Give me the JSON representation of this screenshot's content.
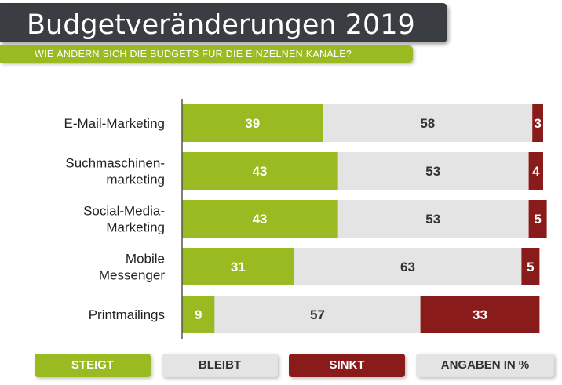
{
  "header": {
    "title": "Budgetveränderungen 2019",
    "subtitle": "WIE ÄNDERN SICH DIE BUDGETS FÜR DIE EINZELNEN KANÄLE?"
  },
  "legend": {
    "steigt": "STEIGT",
    "bleibt": "BLEIBT",
    "sinkt": "SINKT",
    "unit": "ANGABEN IN %"
  },
  "colors": {
    "steigt": "#9aba22",
    "bleibt": "#e4e4e4",
    "sinkt": "#8a1b1b",
    "title_bg": "#3a3d42"
  },
  "chart_data": {
    "type": "bar",
    "orientation": "horizontal",
    "stacked": true,
    "title": "Budgetveränderungen 2019",
    "subtitle": "WIE ÄNDERN SICH DIE BUDGETS FÜR DIE EINZELNEN KANÄLE?",
    "unit": "%",
    "xlim": [
      0,
      100
    ],
    "grid": false,
    "legend_position": "bottom",
    "categories": [
      [
        "E-Mail-Marketing"
      ],
      [
        "Suchmaschinen-",
        "marketing"
      ],
      [
        "Social-Media-",
        "Marketing"
      ],
      [
        "Mobile",
        "Messenger"
      ],
      [
        "Printmailings"
      ]
    ],
    "series": [
      {
        "name": "STEIGT",
        "values": [
          39,
          43,
          43,
          31,
          9
        ]
      },
      {
        "name": "BLEIBT",
        "values": [
          58,
          53,
          53,
          63,
          57
        ]
      },
      {
        "name": "SINKT",
        "values": [
          3,
          4,
          5,
          5,
          33
        ]
      }
    ]
  }
}
